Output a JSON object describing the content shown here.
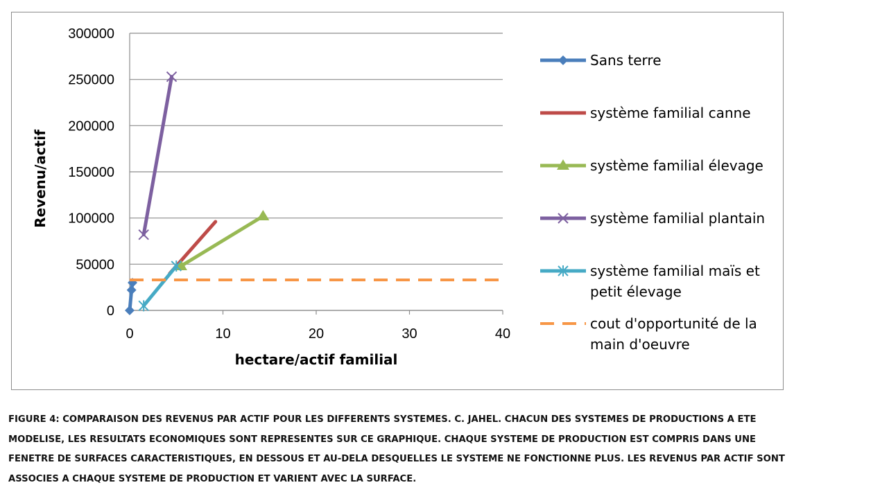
{
  "chart_data": {
    "type": "line",
    "xlabel": "hectare/actif familial",
    "ylabel": "Revenu/actif",
    "xlim": [
      0,
      40
    ],
    "ylim": [
      0,
      300000
    ],
    "x_ticks": [
      "0",
      "10",
      "20",
      "30",
      "40"
    ],
    "y_ticks": [
      "0",
      "50000",
      "100000",
      "150000",
      "200000",
      "250000",
      "300000"
    ],
    "grid": "horizontal",
    "legend_position": "right",
    "series": [
      {
        "name": "Sans terre",
        "color": "#4a7ebb",
        "marker": "diamond",
        "dash": false,
        "points": [
          [
            0,
            0
          ],
          [
            0.2,
            22000
          ],
          [
            0.3,
            30000
          ]
        ]
      },
      {
        "name": "système familial canne",
        "color": "#be4b48",
        "marker": "none",
        "dash": false,
        "points": [
          [
            4.3,
            40000
          ],
          [
            9.2,
            96000
          ]
        ]
      },
      {
        "name": "système familial élevage",
        "color": "#98b954",
        "marker": "triangle",
        "dash": false,
        "points": [
          [
            5.5,
            48000
          ],
          [
            14.3,
            102000
          ]
        ]
      },
      {
        "name": "système familial plantain",
        "color": "#7d60a0",
        "marker": "x",
        "dash": false,
        "points": [
          [
            1.5,
            82000
          ],
          [
            4.5,
            253000
          ]
        ]
      },
      {
        "name": "système familial maïs et petit élevage",
        "color": "#46aac5",
        "marker": "asterisk",
        "dash": false,
        "points": [
          [
            1.5,
            5000
          ],
          [
            5.0,
            48000
          ]
        ]
      },
      {
        "name": "cout d'opportunité de la main d'oeuvre",
        "color": "#f79646",
        "marker": "none",
        "dash": true,
        "points": [
          [
            0,
            33000
          ],
          [
            40,
            33000
          ]
        ]
      }
    ],
    "legend_lines": [
      [
        "Sans terre"
      ],
      [
        "système familial canne"
      ],
      [
        "système familial élevage"
      ],
      [
        "système familial plantain"
      ],
      [
        "système familial maïs et",
        "petit élevage"
      ],
      [
        "cout d'opportunité de la",
        "main d'oeuvre"
      ]
    ]
  },
  "caption": {
    "lines": [
      "FIGURE 4: COMPARAISON DES REVENUS PAR ACTIF POUR LES DIFFERENTS SYSTEMES. C. JAHEL. CHACUN DES SYSTEMES DE PRODUCTIONS A ETE",
      "MODELISE, LES RESULTATS ECONOMIQUES SONT REPRESENTES SUR CE GRAPHIQUE. CHAQUE SYSTEME DE PRODUCTION EST COMPRIS DANS UNE",
      "FENETRE DE SURFACES CARACTERISTIQUES, EN DESSOUS ET AU-DELA DESQUELLES LE SYSTEME NE FONCTIONNE PLUS. LES REVENUS PAR ACTIF SONT",
      "ASSOCIES A CHAQUE SYSTEME DE PRODUCTION ET VARIENT AVEC LA SURFACE."
    ]
  }
}
